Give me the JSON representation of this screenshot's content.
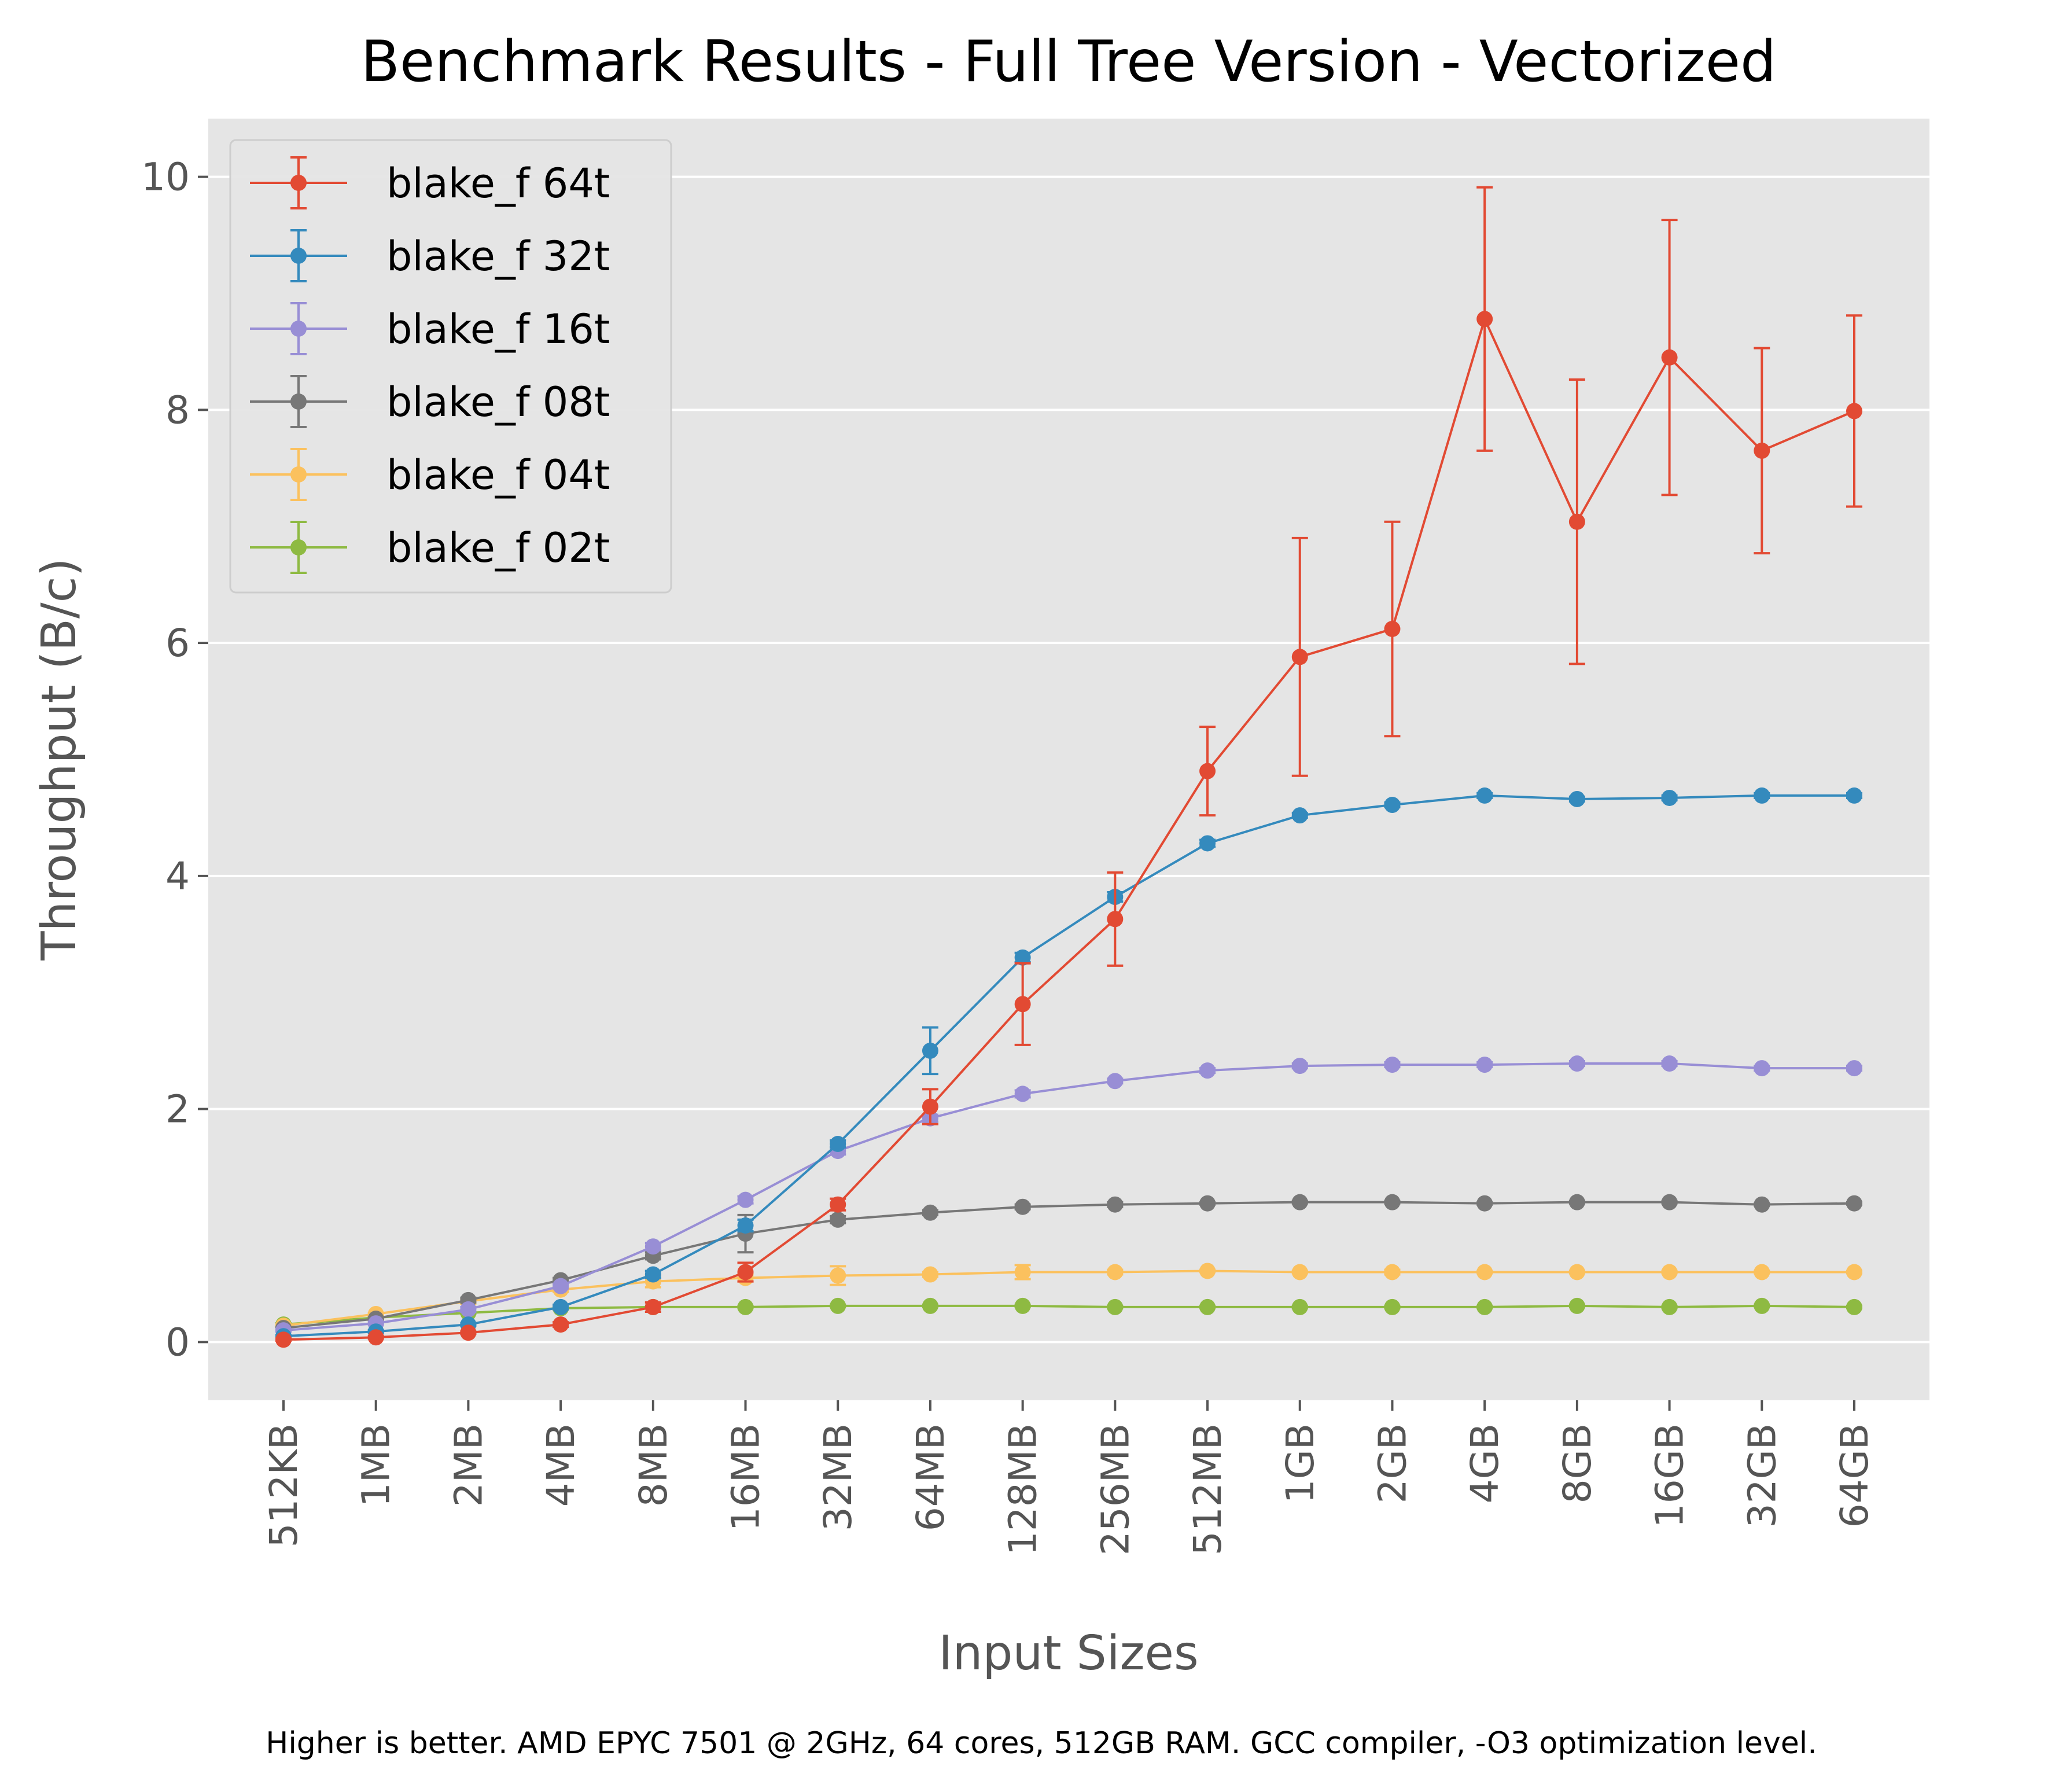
{
  "chart_data": {
    "type": "line",
    "title": "Benchmark Results - Full Tree Version - Vectorized",
    "xlabel": "Input Sizes",
    "ylabel": "Throughput (B/c)",
    "footnote": "Higher is better. AMD EPYC 7501 @ 2GHz, 64 cores, 512GB RAM. GCC compiler, -O3 optimization level.",
    "categories": [
      "512KB",
      "1MB",
      "2MB",
      "4MB",
      "8MB",
      "16MB",
      "32MB",
      "64MB",
      "128MB",
      "256MB",
      "512MB",
      "1GB",
      "2GB",
      "4GB",
      "8GB",
      "16GB",
      "32GB",
      "64GB"
    ],
    "ylim": [
      -0.5,
      10.5
    ],
    "yticks": [
      0,
      2,
      4,
      6,
      8,
      10
    ],
    "grid": true,
    "legend": "top-left",
    "colors": {
      "background": "#E5E5E5",
      "grid": "#FFFFFF",
      "tick": "#555555"
    },
    "series": [
      {
        "name": "blake_f 64t",
        "color": "#E24A33",
        "values": [
          0.02,
          0.04,
          0.08,
          0.15,
          0.3,
          0.6,
          1.18,
          2.02,
          2.9,
          3.63,
          4.9,
          5.88,
          6.12,
          8.78,
          7.04,
          8.45,
          7.65,
          7.99
        ],
        "errors": [
          0.01,
          0.01,
          0.01,
          0.02,
          0.04,
          0.08,
          0.05,
          0.15,
          0.35,
          0.4,
          0.38,
          1.02,
          0.92,
          1.13,
          1.22,
          1.18,
          0.88,
          0.82
        ]
      },
      {
        "name": "blake_f 32t",
        "color": "#348ABD",
        "values": [
          0.05,
          0.09,
          0.15,
          0.3,
          0.58,
          1.0,
          1.7,
          2.5,
          3.3,
          3.82,
          4.28,
          4.52,
          4.61,
          4.69,
          4.66,
          4.67,
          4.69,
          4.69
        ],
        "errors": [
          0.01,
          0.01,
          0.01,
          0.02,
          0.03,
          0.05,
          0.03,
          0.2,
          0.04,
          0.04,
          0.03,
          0.02,
          0.02,
          0.02,
          0.02,
          0.02,
          0.02,
          0.02
        ]
      },
      {
        "name": "blake_f 16t",
        "color": "#988ED5",
        "values": [
          0.1,
          0.16,
          0.28,
          0.48,
          0.82,
          1.22,
          1.64,
          1.92,
          2.13,
          2.24,
          2.33,
          2.37,
          2.38,
          2.38,
          2.39,
          2.39,
          2.35,
          2.35
        ],
        "errors": [
          0.01,
          0.01,
          0.02,
          0.02,
          0.03,
          0.03,
          0.03,
          0.03,
          0.03,
          0.02,
          0.02,
          0.02,
          0.02,
          0.02,
          0.02,
          0.02,
          0.02,
          0.02
        ]
      },
      {
        "name": "blake_f 08t",
        "color": "#777777",
        "values": [
          0.12,
          0.2,
          0.36,
          0.53,
          0.74,
          0.93,
          1.05,
          1.11,
          1.16,
          1.18,
          1.19,
          1.2,
          1.2,
          1.19,
          1.2,
          1.2,
          1.18,
          1.19
        ],
        "errors": [
          0.01,
          0.01,
          0.02,
          0.02,
          0.03,
          0.16,
          0.03,
          0.02,
          0.02,
          0.02,
          0.01,
          0.01,
          0.01,
          0.01,
          0.01,
          0.01,
          0.01,
          0.01
        ]
      },
      {
        "name": "blake_f 04t",
        "color": "#FBC15E",
        "values": [
          0.14,
          0.24,
          0.35,
          0.45,
          0.52,
          0.55,
          0.57,
          0.58,
          0.6,
          0.6,
          0.61,
          0.6,
          0.6,
          0.6,
          0.6,
          0.6,
          0.6,
          0.6
        ],
        "errors": [
          0.01,
          0.01,
          0.02,
          0.02,
          0.05,
          0.03,
          0.08,
          0.02,
          0.06,
          0.02,
          0.01,
          0.01,
          0.02,
          0.01,
          0.01,
          0.01,
          0.01,
          0.01
        ]
      },
      {
        "name": "blake_f 02t",
        "color": "#8EBA42",
        "values": [
          0.15,
          0.21,
          0.25,
          0.29,
          0.3,
          0.3,
          0.31,
          0.31,
          0.31,
          0.3,
          0.3,
          0.3,
          0.3,
          0.3,
          0.31,
          0.3,
          0.31,
          0.3
        ],
        "errors": [
          0.01,
          0.01,
          0.01,
          0.01,
          0.01,
          0.01,
          0.01,
          0.01,
          0.01,
          0.01,
          0.01,
          0.01,
          0.01,
          0.01,
          0.01,
          0.01,
          0.01,
          0.01
        ]
      }
    ]
  }
}
